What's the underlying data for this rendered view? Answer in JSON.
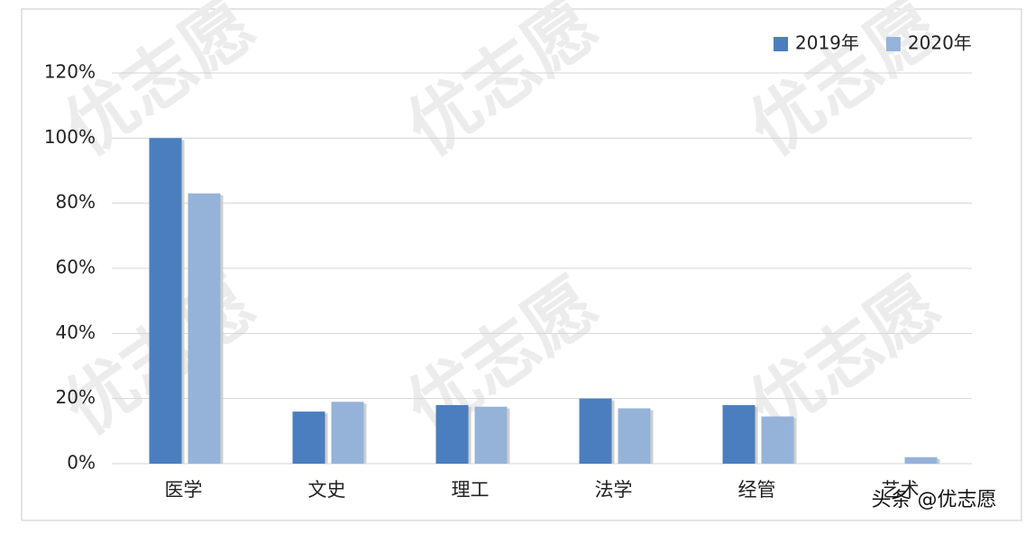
{
  "chart_data": {
    "type": "bar",
    "categories": [
      "医学",
      "文史",
      "理工",
      "法学",
      "经管",
      "艺术"
    ],
    "series": [
      {
        "name": "2019年",
        "color": "#4a7ebf",
        "values": [
          100,
          16,
          18,
          20,
          18,
          0
        ]
      },
      {
        "name": "2020年",
        "color": "#95b3d9",
        "values": [
          83,
          19,
          17.5,
          17,
          14.5,
          2
        ]
      }
    ],
    "ylim": [
      0,
      120
    ],
    "yticks": [
      {
        "value": 0,
        "label": "0%"
      },
      {
        "value": 20,
        "label": "20%"
      },
      {
        "value": 40,
        "label": "40%"
      },
      {
        "value": 60,
        "label": "60%"
      },
      {
        "value": 80,
        "label": "80%"
      },
      {
        "value": 100,
        "label": "100%"
      },
      {
        "value": 120,
        "label": "120%"
      }
    ],
    "grid": true,
    "legend": "top-right",
    "watermark": "优志愿",
    "credit": "头条 @优志愿"
  }
}
